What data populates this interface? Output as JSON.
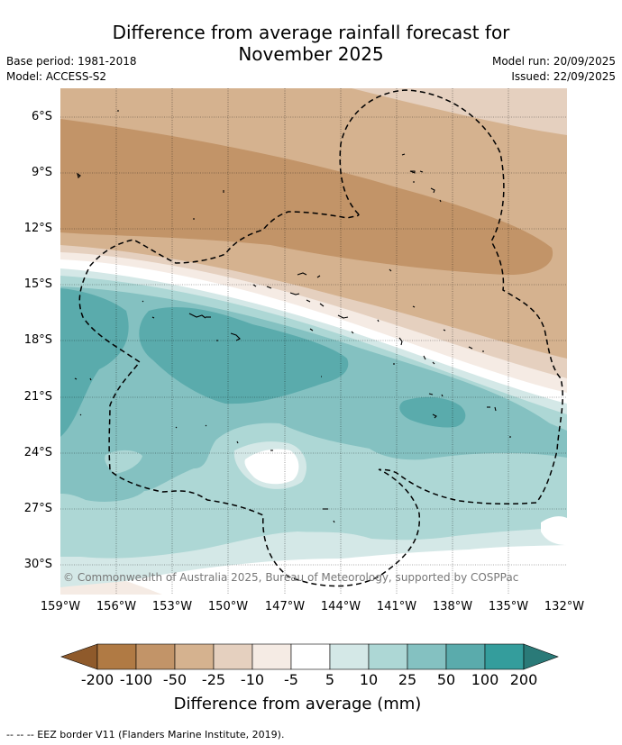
{
  "title_line1": "Difference from average rainfall forecast for",
  "title_line2": "November 2025",
  "base_period": "Base period: 1981-2018",
  "model": "Model: ACCESS-S2",
  "model_run": "Model run: 20/09/2025",
  "issued": "Issued: 22/09/2025",
  "copyright": "© Commonwealth of Australia 2025, Bureau of Meteorology, supported by COSPPac",
  "lat_labels": [
    "6°S",
    "9°S",
    "12°S",
    "15°S",
    "18°S",
    "21°S",
    "24°S",
    "27°S",
    "30°S"
  ],
  "lon_labels": [
    "159°W",
    "156°W",
    "153°W",
    "150°W",
    "147°W",
    "144°W",
    "141°W",
    "138°W",
    "135°W",
    "132°W"
  ],
  "legend": {
    "title": "Difference from average (mm)",
    "tick_labels": [
      "-200",
      "-100",
      "-50",
      "-25",
      "-10",
      "-5",
      "5",
      "10",
      "25",
      "50",
      "100",
      "200"
    ],
    "colors": [
      "#8f5a2b",
      "#b07a44",
      "#c29468",
      "#d5b28f",
      "#e5d0bf",
      "#f5ebe4",
      "#ffffff",
      "#d4e8e7",
      "#add7d5",
      "#84c1c1",
      "#5aabac",
      "#349d9c",
      "#2a7a78"
    ]
  },
  "footnote": "--  --  -- EEZ border V11 (Flanders Marine Institute, 2019)."
}
